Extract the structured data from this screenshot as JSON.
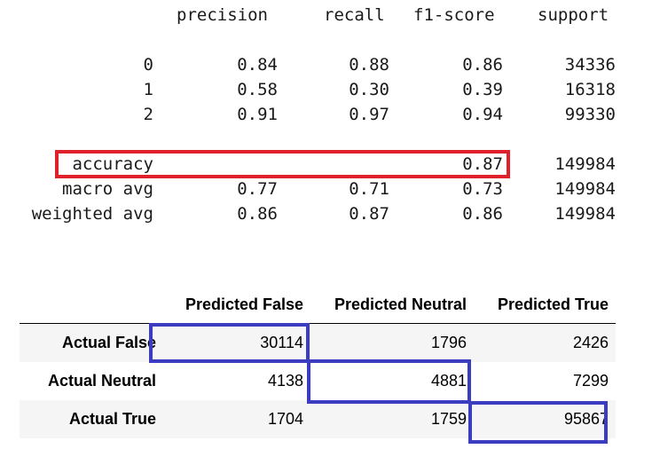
{
  "report": {
    "headers": [
      "precision",
      "recall",
      "f1-score",
      "support"
    ],
    "class_rows": [
      {
        "label": "0",
        "precision": "0.84",
        "recall": "0.88",
        "f1": "0.86",
        "support": "34336"
      },
      {
        "label": "1",
        "precision": "0.58",
        "recall": "0.30",
        "f1": "0.39",
        "support": "16318"
      },
      {
        "label": "2",
        "precision": "0.91",
        "recall": "0.97",
        "f1": "0.94",
        "support": "99330"
      }
    ],
    "accuracy": {
      "label": "accuracy",
      "f1": "0.87",
      "support": "149984"
    },
    "avg_rows": [
      {
        "label": "macro avg",
        "precision": "0.77",
        "recall": "0.71",
        "f1": "0.73",
        "support": "149984"
      },
      {
        "label": "weighted avg",
        "precision": "0.86",
        "recall": "0.87",
        "f1": "0.86",
        "support": "149984"
      }
    ],
    "highlight_color": "#e0202a"
  },
  "confusion": {
    "columns": [
      "Predicted False",
      "Predicted Neutral",
      "Predicted True"
    ],
    "rows": [
      {
        "label": "Actual False",
        "values": [
          "30114",
          "1796",
          "2426"
        ]
      },
      {
        "label": "Actual Neutral",
        "values": [
          "4138",
          "4881",
          "7299"
        ]
      },
      {
        "label": "Actual True",
        "values": [
          "1704",
          "1759",
          "95867"
        ]
      }
    ],
    "highlight_color": "#3c3cc0"
  }
}
